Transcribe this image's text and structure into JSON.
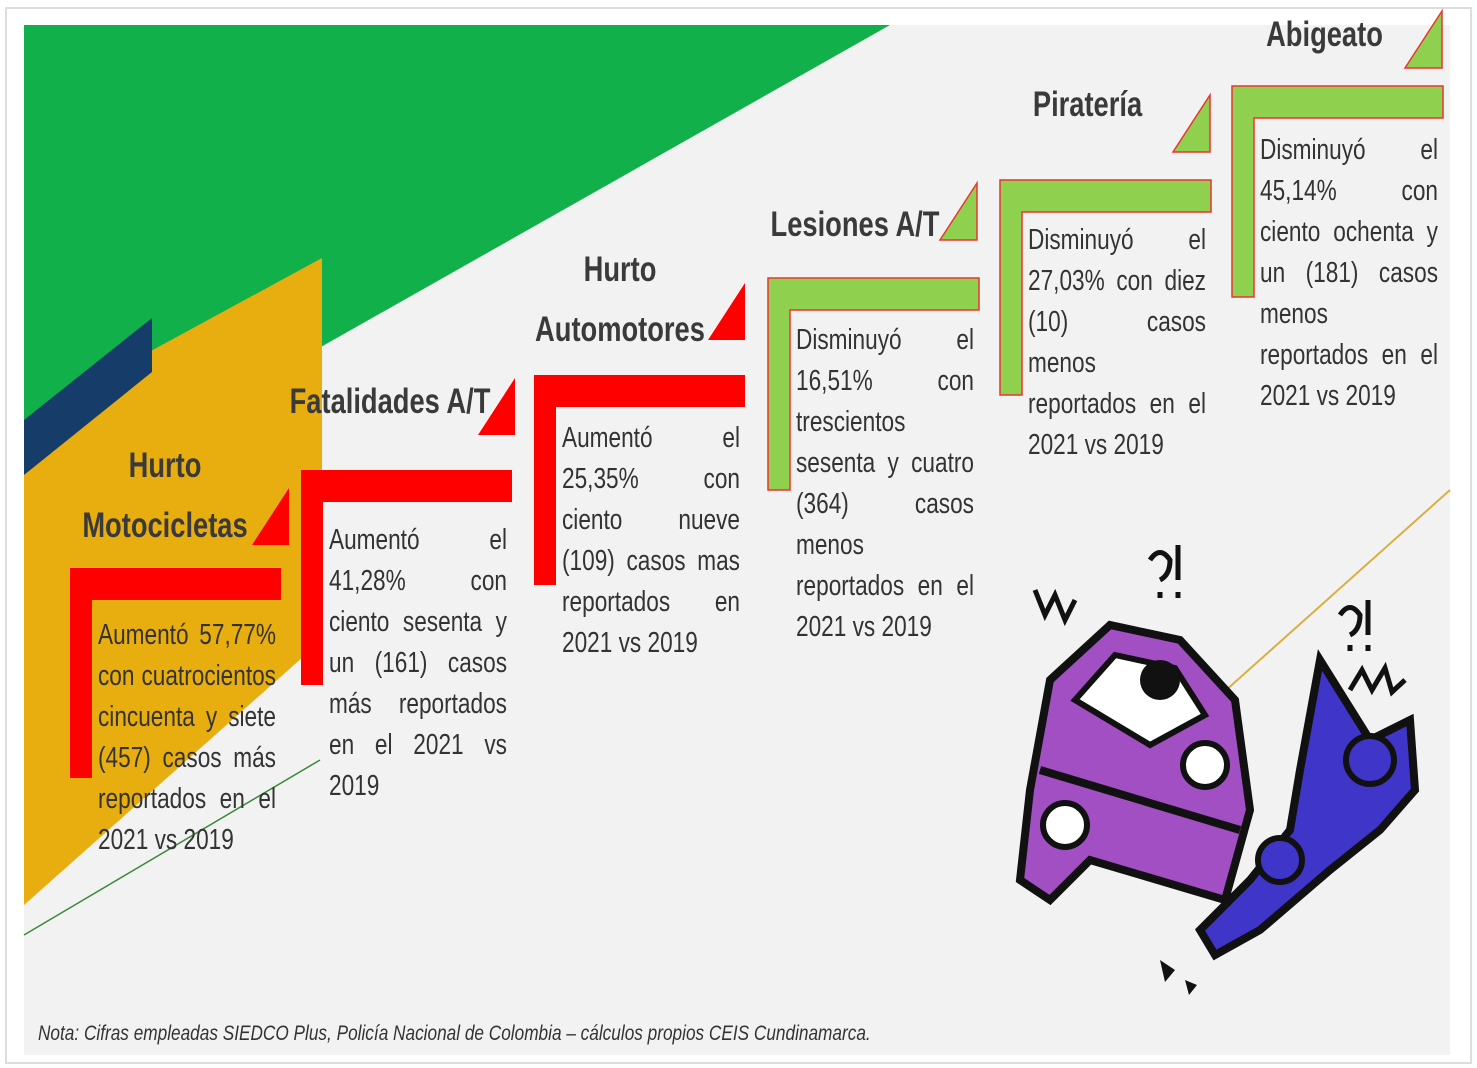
{
  "steps": [
    {
      "title": "Hurto Motocicletas",
      "text": "Aumentó 57,77% con cuatrocientos cincuenta y siete (457) casos más reportados en el 2021 vs 2019"
    },
    {
      "title": "Fatalidades A/T",
      "text": "Aumentó el 41,28% con ciento sesenta y un (161) casos más reportados en el 2021 vs 2019"
    },
    {
      "title": "Hurto Automotores",
      "text": "Aumentó el 25,35% con ciento nueve (109) casos mas reportados en 2021 vs 2019"
    },
    {
      "title": "Lesiones A/T",
      "text": "Disminuyó el 16,51% con trescientos sesenta y cuatro (364) casos menos reportados en el 2021 vs 2019"
    },
    {
      "title": "Piratería",
      "text": "Disminuyó el 27,03% con diez (10) casos menos reportados en el 2021 vs 2019"
    },
    {
      "title": "Abigeato",
      "text": "Disminuyó el 45,14% con ciento ochenta y un (181) casos menos reportados en el 2021 vs 2019"
    }
  ],
  "note": "Nota: Cifras empleadas SIEDCO Plus, Policía Nacional de Colombia – cálculos propios CEIS Cundinamarca."
}
